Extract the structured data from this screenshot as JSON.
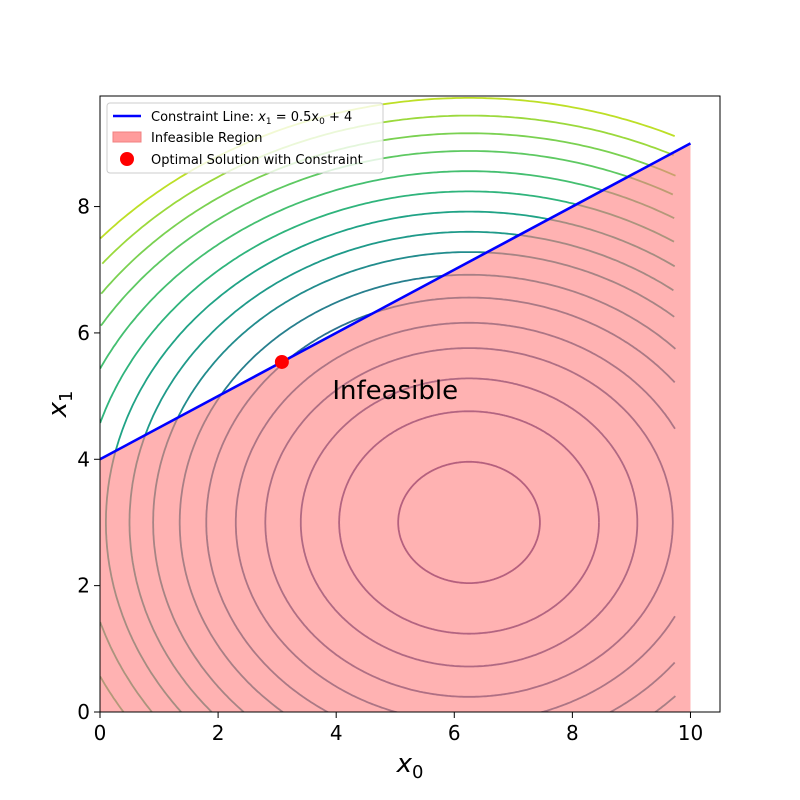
{
  "chart_data": {
    "type": "contour",
    "title": "",
    "xlabel": "x",
    "xlabel_sub": "0",
    "ylabel": "x",
    "ylabel_sub": "1",
    "xlim": [
      0,
      10.5
    ],
    "ylim": [
      0,
      9.75
    ],
    "xticks": [
      "0",
      "2",
      "4",
      "6",
      "8",
      "10"
    ],
    "yticks": [
      "0",
      "2",
      "4",
      "6",
      "8"
    ],
    "grid": false,
    "legend_placement": "upper-left",
    "objective_center": [
      6.25,
      3.0
    ],
    "contour_x_range": [
      0,
      9.75
    ],
    "contour_levels": [
      {
        "a": 1.2,
        "color": "#46337e"
      },
      {
        "a": 2.2,
        "color": "#433e85"
      },
      {
        "a": 2.85,
        "color": "#3e4989"
      },
      {
        "a": 3.45,
        "color": "#38588c"
      },
      {
        "a": 3.95,
        "color": "#31668e"
      },
      {
        "a": 4.45,
        "color": "#2c728e"
      },
      {
        "a": 4.9,
        "color": "#277f8e"
      },
      {
        "a": 5.35,
        "color": "#228c8d"
      },
      {
        "a": 5.75,
        "color": "#1f9a8a"
      },
      {
        "a": 6.15,
        "color": "#20a386"
      },
      {
        "a": 6.55,
        "color": "#2fb47c"
      },
      {
        "a": 6.95,
        "color": "#44bf70"
      },
      {
        "a": 7.35,
        "color": "#5ec962"
      },
      {
        "a": 7.7,
        "color": "#7ad151"
      },
      {
        "a": 8.05,
        "color": "#9bd93c"
      },
      {
        "a": 8.4,
        "color": "#bddf26"
      }
    ],
    "constraint_line": {
      "slope": 0.5,
      "intercept": 4,
      "x": [
        0,
        10
      ],
      "color": "#0000ff"
    },
    "infeasible_region": {
      "x": [
        0,
        10
      ],
      "color": "#ff7f7f",
      "opacity": 0.6
    },
    "optimal_point": {
      "x": 3.08,
      "y": 5.54,
      "color": "#ff0000"
    },
    "annotation": {
      "text": "Infeasible",
      "x": 5,
      "y": 5.1
    },
    "legend": [
      {
        "label": "Constraint Line: ",
        "label_math": "x",
        "label_sub": "1",
        "label_rest": " = 0.5x",
        "label_sub2": "0",
        "label_tail": " + 4",
        "kind": "line",
        "color": "#0000ff"
      },
      {
        "label": "Infeasible Region",
        "kind": "patch",
        "color": "#ff9c9c"
      },
      {
        "label": "Optimal Solution with Constraint",
        "kind": "marker",
        "color": "#ff0000"
      }
    ]
  }
}
